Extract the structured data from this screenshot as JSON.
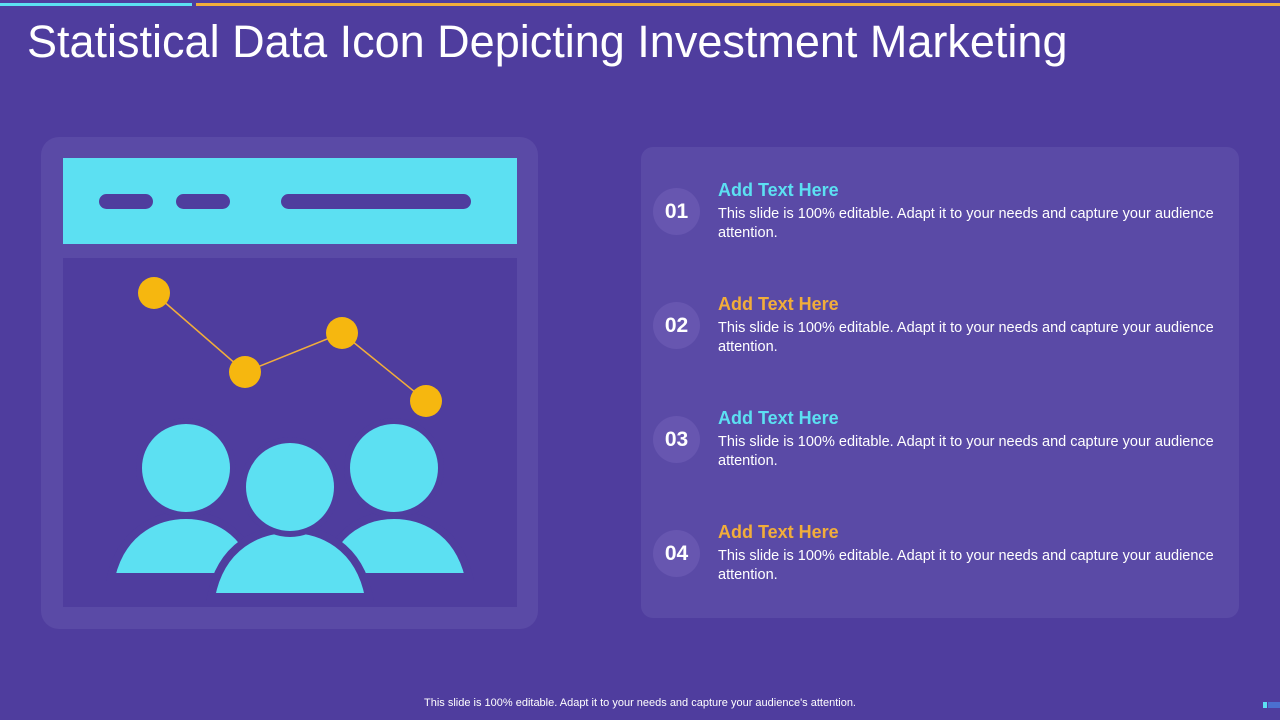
{
  "title": "Statistical Data Icon Depicting Investment Marketing",
  "colors": {
    "background": "#4f3d9e",
    "panel": "#5a4aa6",
    "accent_cyan": "#5ce0f2",
    "accent_orange": "#f2ad3a",
    "text": "#ffffff"
  },
  "illustration": {
    "icon": "browser-window-with-line-chart-and-people-icon",
    "chart_points": 4
  },
  "items": [
    {
      "number": "01",
      "heading": "Add Text Here",
      "heading_color": "#5ce0f2",
      "text": "This slide is 100% editable. Adapt it to your  needs and capture your audience attention."
    },
    {
      "number": "02",
      "heading": "Add Text Here",
      "heading_color": "#f2ad3a",
      "text": "This slide is 100% editable. Adapt it to your  needs and capture your audience attention."
    },
    {
      "number": "03",
      "heading": "Add Text Here",
      "heading_color": "#5ce0f2",
      "text": "This slide is 100% editable. Adapt it to your  needs and capture your audience attention."
    },
    {
      "number": "04",
      "heading": "Add Text Here",
      "heading_color": "#f2ad3a",
      "text": "This slide is 100% editable. Adapt it to your  needs and capture your audience attention."
    }
  ],
  "footer": "This slide is 100% editable. Adapt it to your needs and capture your audience's attention."
}
